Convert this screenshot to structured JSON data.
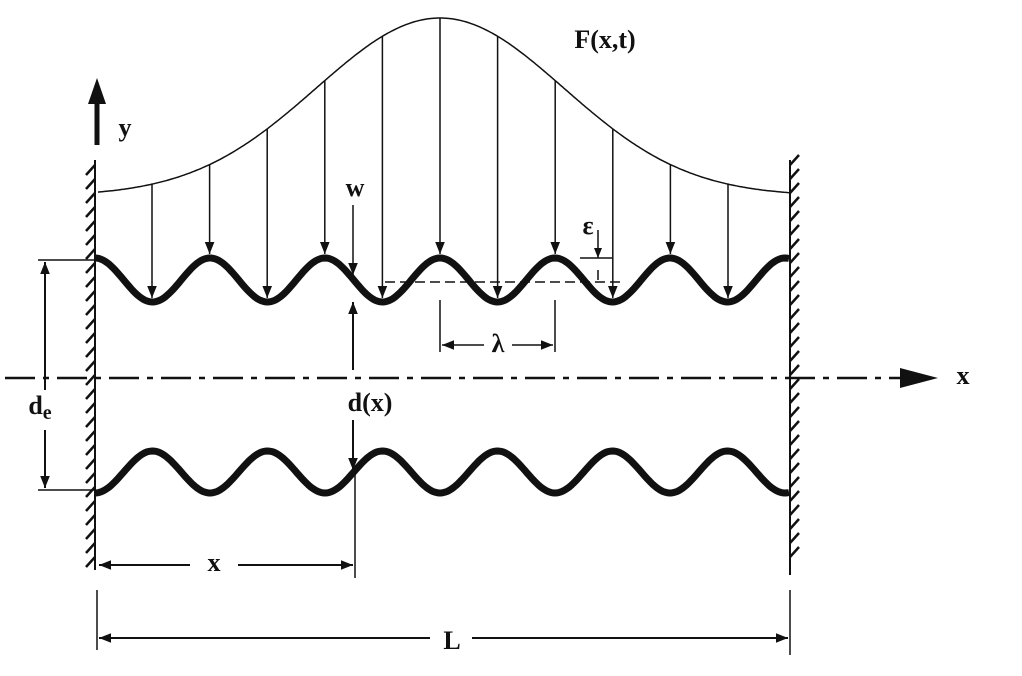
{
  "labels": {
    "force": "F(x,t)",
    "y_axis": "y",
    "x_axis": "x",
    "deflection": "w",
    "amplitude": "ε",
    "wavelength": "λ",
    "gap": "d(x)",
    "gap_end": {
      "base": "d",
      "subscript": "e"
    },
    "position": "x",
    "length": "L"
  }
}
